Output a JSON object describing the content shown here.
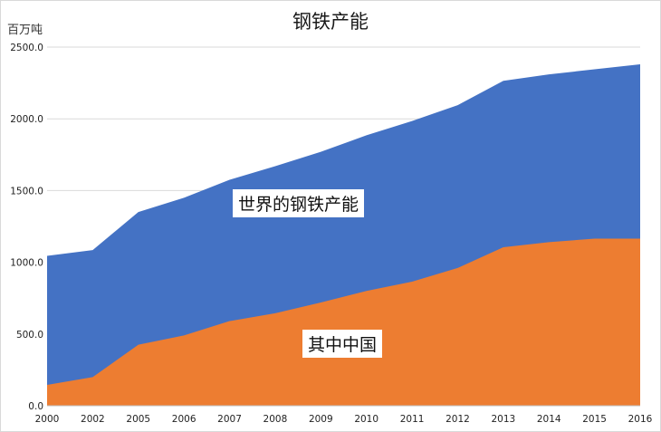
{
  "chart_data": {
    "type": "area",
    "stacked": false,
    "title": "钢铁产能",
    "ylabel": "百万吨",
    "xlabel": "",
    "ylim": [
      0,
      2500
    ],
    "yticks": [
      "0.0",
      "500.0",
      "1000.0",
      "1500.0",
      "2000.0",
      "2500.0"
    ],
    "categories": [
      "2000",
      "2002",
      "2005",
      "2006",
      "2007",
      "2008",
      "2009",
      "2010",
      "2011",
      "2012",
      "2013",
      "2014",
      "2015",
      "2016"
    ],
    "grid": true,
    "series": [
      {
        "name": "世界的钢铁产能",
        "color": "#4472C4",
        "values": [
          1045,
          1085,
          1350,
          1450,
          1575,
          1670,
          1770,
          1885,
          1985,
          2095,
          2265,
          2310,
          2345,
          2380
        ]
      },
      {
        "name": "其中中国",
        "color": "#ED7D31",
        "values": [
          145,
          200,
          425,
          490,
          590,
          645,
          720,
          800,
          865,
          960,
          1105,
          1140,
          1165,
          1165
        ]
      }
    ]
  }
}
